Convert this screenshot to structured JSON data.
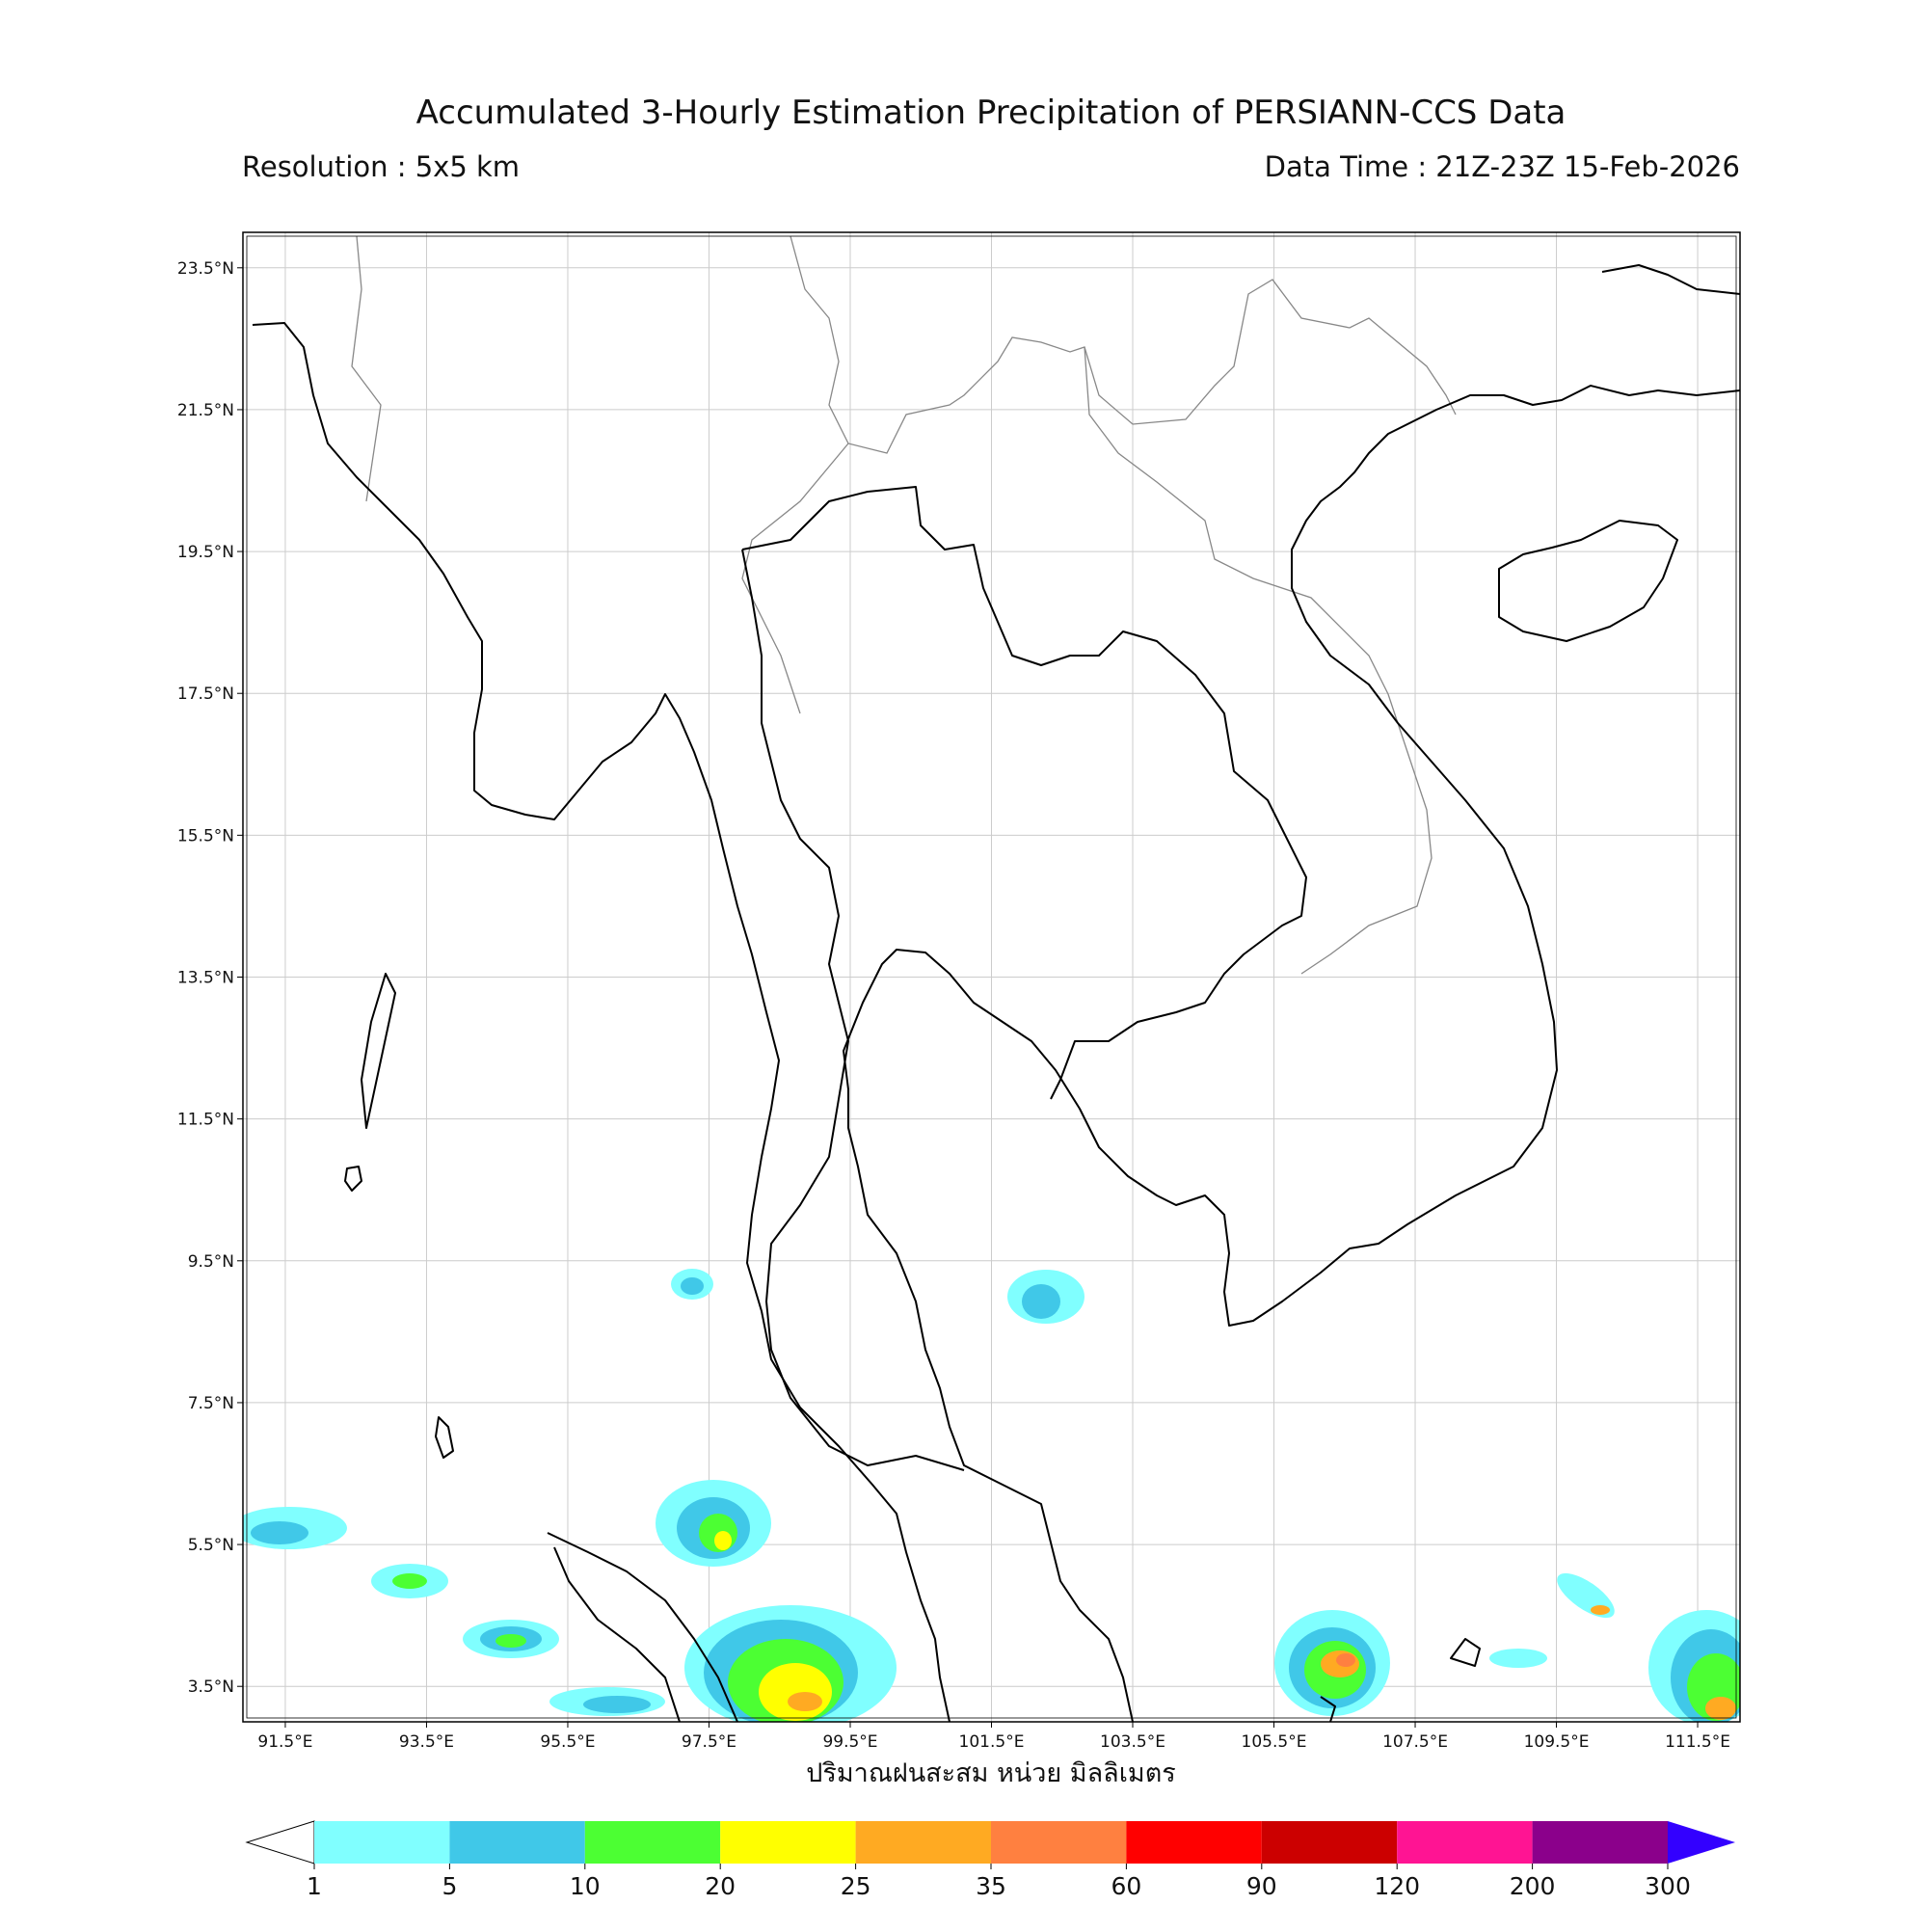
{
  "header": {
    "title": "Accumulated 3-Hourly Estimation Precipitation of PERSIANN-CCS Data",
    "resolution": "Resolution : 5x5 km",
    "data_time": "Data Time : 21Z-23Z 15-Feb-2026"
  },
  "map": {
    "xlim": [
      90.9,
      112.1
    ],
    "ylim": [
      3.0,
      24.0
    ],
    "grid": true,
    "xticks": [
      {
        "value": 91.5,
        "label": "91.5°E"
      },
      {
        "value": 93.5,
        "label": "93.5°E"
      },
      {
        "value": 95.5,
        "label": "95.5°E"
      },
      {
        "value": 97.5,
        "label": "97.5°E"
      },
      {
        "value": 99.5,
        "label": "99.5°E"
      },
      {
        "value": 101.5,
        "label": "101.5°E"
      },
      {
        "value": 103.5,
        "label": "103.5°E"
      },
      {
        "value": 105.5,
        "label": "105.5°E"
      },
      {
        "value": 107.5,
        "label": "107.5°E"
      },
      {
        "value": 109.5,
        "label": "109.5°E"
      },
      {
        "value": 111.5,
        "label": "111.5°E"
      }
    ],
    "yticks": [
      {
        "value": 3.5,
        "label": "3.5°N"
      },
      {
        "value": 5.5,
        "label": "5.5°N"
      },
      {
        "value": 7.5,
        "label": "7.5°N"
      },
      {
        "value": 9.5,
        "label": "9.5°N"
      },
      {
        "value": 11.5,
        "label": "11.5°N"
      },
      {
        "value": 13.5,
        "label": "13.5°N"
      },
      {
        "value": 15.5,
        "label": "15.5°N"
      },
      {
        "value": 17.5,
        "label": "17.5°N"
      },
      {
        "value": 19.5,
        "label": "19.5°N"
      },
      {
        "value": 21.5,
        "label": "21.5°N"
      },
      {
        "value": 23.5,
        "label": "23.5°N"
      }
    ],
    "xlabel": "ปริมาณฝนสะสม หน่วย มิลลิเมตร"
  },
  "colorbar": {
    "levels": [
      1,
      5,
      10,
      20,
      25,
      35,
      60,
      90,
      120,
      200,
      300
    ],
    "colors": [
      "#80ffff",
      "#40c8e8",
      "#4cff33",
      "#ffff00",
      "#ffaa22",
      "#ff8040",
      "#ff0000",
      "#cc0000",
      "#ff1493",
      "#8b008b"
    ],
    "under_color": "#ffffff",
    "over_color": "#3300ff"
  }
}
